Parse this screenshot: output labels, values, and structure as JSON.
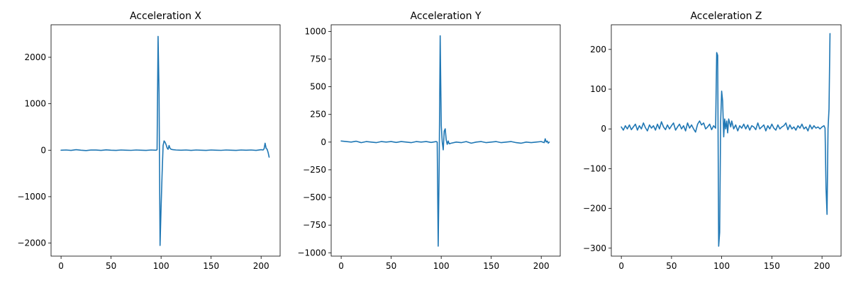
{
  "colors": {
    "series": "#1f77b4",
    "axes": "#000000",
    "background": "#ffffff"
  },
  "chart_data": [
    {
      "type": "line",
      "title": "Acceleration X",
      "xlim": [
        -10,
        219
      ],
      "ylim": [
        -2280,
        2700
      ],
      "xticks": [
        0,
        50,
        100,
        150,
        200
      ],
      "yticks": [
        -2000,
        -1000,
        0,
        1000,
        2000
      ],
      "grid": false,
      "series": [
        {
          "x": [
            0,
            5,
            10,
            15,
            20,
            25,
            30,
            35,
            40,
            45,
            50,
            55,
            60,
            65,
            70,
            75,
            80,
            85,
            90,
            95,
            96,
            97,
            98,
            99,
            100,
            101,
            102,
            103,
            104,
            105,
            106,
            107,
            108,
            109,
            110,
            111,
            112,
            115,
            120,
            125,
            130,
            135,
            140,
            145,
            150,
            155,
            160,
            165,
            170,
            175,
            180,
            185,
            190,
            195,
            200,
            202,
            203,
            204,
            205,
            206,
            207,
            208
          ],
          "y": [
            0,
            5,
            -5,
            10,
            0,
            -8,
            5,
            3,
            -5,
            8,
            0,
            -5,
            5,
            0,
            -3,
            5,
            0,
            -5,
            5,
            0,
            10,
            2450,
            1200,
            -2050,
            -1200,
            -500,
            100,
            200,
            170,
            120,
            50,
            20,
            100,
            40,
            20,
            15,
            10,
            5,
            0,
            5,
            -5,
            5,
            0,
            -5,
            5,
            0,
            -3,
            5,
            0,
            -5,
            5,
            0,
            5,
            -5,
            10,
            5,
            30,
            150,
            40,
            20,
            -50,
            -150
          ]
        }
      ]
    },
    {
      "type": "line",
      "title": "Acceleration Y",
      "xlim": [
        -10,
        219
      ],
      "ylim": [
        -1030,
        1060
      ],
      "xticks": [
        0,
        50,
        100,
        150,
        200
      ],
      "yticks": [
        -1000,
        -750,
        -500,
        -250,
        0,
        250,
        500,
        750,
        1000
      ],
      "grid": false,
      "series": [
        {
          "x": [
            0,
            5,
            10,
            15,
            20,
            25,
            30,
            35,
            40,
            45,
            50,
            55,
            60,
            65,
            70,
            75,
            80,
            85,
            90,
            95,
            96,
            97,
            98,
            99,
            100,
            101,
            102,
            103,
            104,
            105,
            106,
            107,
            108,
            110,
            115,
            120,
            125,
            130,
            135,
            140,
            145,
            150,
            155,
            160,
            165,
            170,
            175,
            180,
            185,
            190,
            195,
            200,
            203,
            204,
            205,
            206,
            207,
            208
          ],
          "y": [
            10,
            5,
            0,
            8,
            -5,
            5,
            0,
            -5,
            5,
            0,
            5,
            -3,
            5,
            0,
            -5,
            5,
            0,
            5,
            -3,
            5,
            0,
            -940,
            -200,
            960,
            150,
            0,
            -70,
            100,
            120,
            20,
            -20,
            10,
            -15,
            -10,
            0,
            -5,
            5,
            -10,
            0,
            5,
            -5,
            0,
            5,
            -5,
            0,
            5,
            -5,
            -10,
            0,
            -5,
            0,
            5,
            -5,
            30,
            0,
            10,
            -10,
            0
          ]
        }
      ]
    },
    {
      "type": "line",
      "title": "Acceleration Z",
      "xlim": [
        -10,
        219
      ],
      "ylim": [
        -320,
        262
      ],
      "xticks": [
        0,
        50,
        100,
        150,
        200
      ],
      "yticks": [
        -300,
        -200,
        -100,
        0,
        100,
        200
      ],
      "grid": false,
      "series": [
        {
          "x": [
            0,
            2,
            4,
            6,
            8,
            10,
            12,
            14,
            16,
            18,
            20,
            22,
            24,
            26,
            28,
            30,
            32,
            34,
            36,
            38,
            40,
            42,
            44,
            46,
            48,
            50,
            52,
            54,
            56,
            58,
            60,
            62,
            64,
            66,
            68,
            70,
            72,
            74,
            76,
            78,
            80,
            82,
            84,
            86,
            88,
            90,
            92,
            94,
            95,
            96,
            97,
            98,
            99,
            100,
            101,
            102,
            103,
            104,
            105,
            106,
            107,
            108,
            109,
            110,
            112,
            114,
            116,
            118,
            120,
            122,
            124,
            126,
            128,
            130,
            132,
            134,
            136,
            138,
            140,
            142,
            144,
            146,
            148,
            150,
            152,
            154,
            156,
            158,
            160,
            162,
            164,
            166,
            168,
            170,
            172,
            174,
            176,
            178,
            180,
            182,
            184,
            186,
            188,
            190,
            192,
            194,
            196,
            198,
            200,
            202,
            203,
            204,
            205,
            206,
            207,
            208
          ],
          "y": [
            5,
            -3,
            8,
            0,
            10,
            -2,
            5,
            12,
            -3,
            8,
            0,
            15,
            3,
            -5,
            10,
            2,
            8,
            -3,
            12,
            0,
            18,
            5,
            -2,
            10,
            0,
            8,
            15,
            -3,
            5,
            12,
            0,
            8,
            -5,
            15,
            2,
            10,
            0,
            -8,
            12,
            20,
            10,
            15,
            0,
            5,
            12,
            -2,
            8,
            2,
            192,
            185,
            -295,
            -260,
            20,
            95,
            70,
            -20,
            25,
            0,
            20,
            -10,
            25,
            15,
            5,
            20,
            0,
            10,
            -5,
            8,
            2,
            12,
            0,
            10,
            -3,
            8,
            5,
            -2,
            15,
            0,
            5,
            10,
            -5,
            8,
            0,
            12,
            2,
            -3,
            10,
            0,
            5,
            8,
            15,
            -2,
            10,
            0,
            5,
            -3,
            8,
            2,
            12,
            0,
            5,
            -5,
            10,
            0,
            8,
            2,
            5,
            0,
            5,
            8,
            2,
            -150,
            -215,
            0,
            50,
            240
          ]
        }
      ]
    }
  ]
}
